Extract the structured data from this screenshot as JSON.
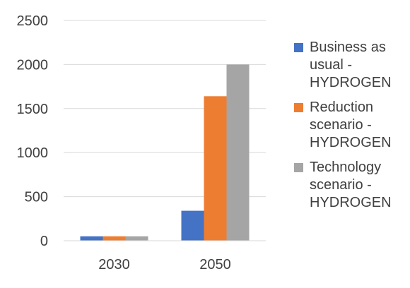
{
  "chart_data": {
    "type": "bar",
    "title": "",
    "xlabel": "",
    "ylabel": "",
    "categories": [
      "2030",
      "2050"
    ],
    "series": [
      {
        "name": "Business as\nusual -\nHYDROGEN",
        "values": [
          50,
          340
        ],
        "color": "#4472C4"
      },
      {
        "name": "Reduction\nscenario -\nHYDROGEN",
        "values": [
          50,
          1640
        ],
        "color": "#ED7D31"
      },
      {
        "name": "Technology\nscenario -\nHYDROGEN",
        "values": [
          50,
          2000
        ],
        "color": "#A5A5A5"
      }
    ],
    "ylim": [
      0,
      2500
    ],
    "yticks": [
      "0",
      "500",
      "1000",
      "1500",
      "2000",
      "2500"
    ],
    "grid": true,
    "legend": "right"
  }
}
